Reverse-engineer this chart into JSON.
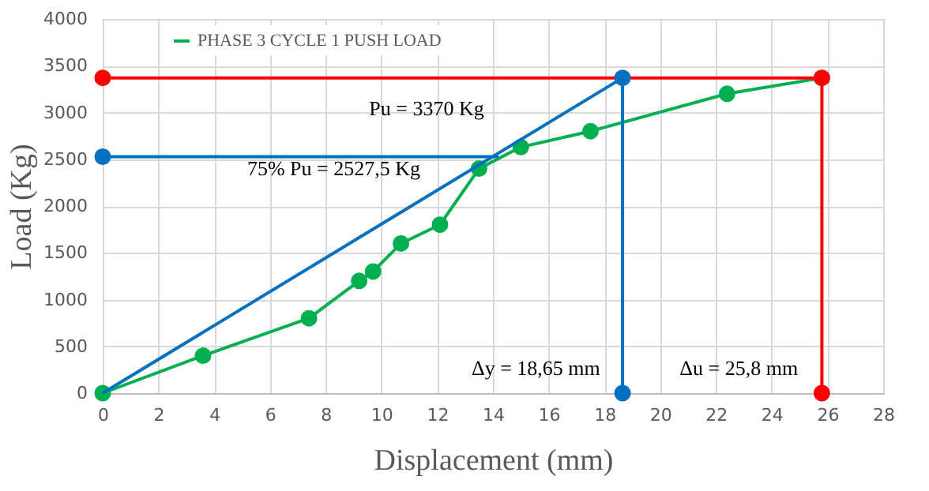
{
  "chart_data": {
    "type": "line",
    "xlabel": "Displacement (mm)",
    "ylabel": "Load (Kg)",
    "xlim": [
      0,
      28
    ],
    "xticks": [
      0,
      2,
      4,
      6,
      8,
      10,
      12,
      14,
      16,
      18,
      20,
      22,
      24,
      26,
      28
    ],
    "ylim": [
      0,
      4000
    ],
    "yticks": [
      0,
      500,
      1000,
      1500,
      2000,
      2500,
      3000,
      3500,
      4000
    ],
    "grid": true,
    "legend": "top left",
    "series": [
      {
        "type": "line",
        "name": "PHASE 3 CYCLE 1 PUSH LOAD",
        "color": "#00b050",
        "marker": "circle",
        "x": [
          0,
          3.6,
          7.4,
          9.2,
          9.7,
          10.7,
          12.1,
          13.5,
          15,
          17.5,
          22.4,
          25.8
        ],
        "values": [
          0,
          400,
          800,
          1200,
          1300,
          1600,
          1800,
          2400,
          2630,
          2800,
          3200,
          3370
        ]
      },
      {
        "type": "line",
        "color": "#ff0000",
        "marker": "none",
        "x": [
          0,
          25.8,
          25.8
        ],
        "values": [
          3370,
          3370,
          0
        ]
      },
      {
        "type": "line",
        "color": "#0070c0",
        "marker": "none",
        "x": [
          0,
          18.65,
          18.65
        ],
        "values": [
          0,
          3370,
          0
        ]
      },
      {
        "type": "line",
        "color": "#0070c0",
        "marker": "none",
        "x": [
          0,
          14.2
        ],
        "values": [
          2527.5,
          2527.5
        ]
      },
      {
        "type": "scatter",
        "color": "#ff0000",
        "x": [
          0,
          25.8,
          25.8
        ],
        "values": [
          3370,
          3370,
          0
        ]
      },
      {
        "type": "scatter",
        "color": "#0070c0",
        "x": [
          0,
          18.65,
          18.65
        ],
        "values": [
          2527.5,
          3370,
          0
        ]
      }
    ],
    "annotations": [
      "Pu = 3370 Kg",
      "75% Pu = 2527,5  Kg",
      "Δy = 18,65 mm",
      "Δu = 25,8 mm"
    ]
  }
}
